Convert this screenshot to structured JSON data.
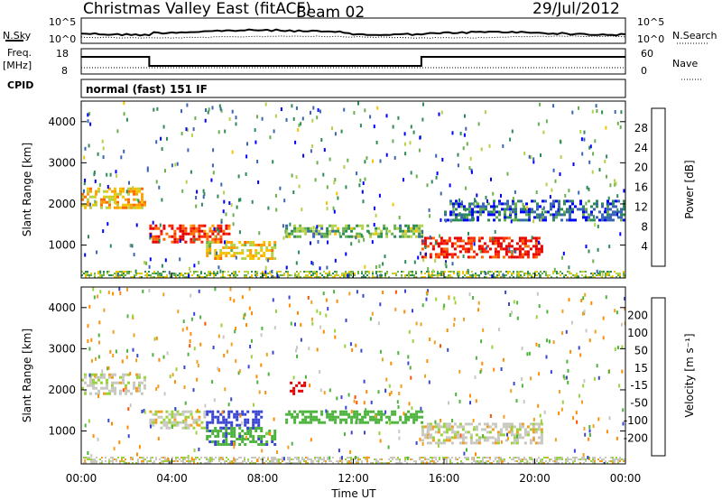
{
  "header": {
    "title": "Christmas Valley East (fitACF)",
    "beam": "Beam 02",
    "date": "29/Jul/2012"
  },
  "left_labels": {
    "nsky": "N.Sky",
    "freq": "Freq.",
    "freq_unit": "[MHz]",
    "cpid": "CPID"
  },
  "right_labels": {
    "nsearch": "N.Search",
    "nave": "Nave"
  },
  "mode_text": "normal (fast) 151 IF",
  "noise_axis": {
    "top_label": "10^5",
    "bottom_label": "10^0"
  },
  "freq_axis": {
    "ticks": [
      "18",
      "8"
    ]
  },
  "nave_axis": {
    "ticks": [
      "60",
      "0"
    ]
  },
  "colors": {
    "power_scale": [
      "#0000ff",
      "#3a64b4",
      "#2e8b57",
      "#6ab04c",
      "#b4d24a",
      "#f5c400",
      "#ffa000",
      "#ff6a00",
      "#ff2a00",
      "#e60000"
    ],
    "velocity_scale": [
      "#1e1ee6",
      "#3a46d2",
      "#2e8b57",
      "#4cb43c",
      "#9ad23c",
      "#c8c8c0",
      "#f0a020",
      "#ff8c00",
      "#ff5000",
      "#e60000"
    ]
  },
  "chart_data": [
    {
      "type": "heatmap",
      "quantity": "Power",
      "ylabel": "Slant Range [km]",
      "yticks": [
        "1000",
        "2000",
        "3000",
        "4000"
      ],
      "ylim": [
        200,
        4500
      ],
      "colorbar_label": "Power [dB]",
      "colorbar_ticks": [
        "4",
        "8",
        "12",
        "16",
        "20",
        "24",
        "28"
      ],
      "features": [
        {
          "t0": 0.0,
          "t1": 2.8,
          "r0": 1900,
          "r1": 2400,
          "level": 0.6
        },
        {
          "t0": 3.0,
          "t1": 6.5,
          "r0": 1100,
          "r1": 1500,
          "level": 0.85
        },
        {
          "t0": 5.5,
          "t1": 8.5,
          "r0": 700,
          "r1": 1100,
          "level": 0.55
        },
        {
          "t0": 9.0,
          "t1": 15.0,
          "r0": 1200,
          "r1": 1500,
          "level": 0.35
        },
        {
          "t0": 15.0,
          "t1": 20.3,
          "r0": 700,
          "r1": 1200,
          "level": 0.9
        },
        {
          "t0": 16.0,
          "t1": 24.0,
          "r0": 1600,
          "r1": 2100,
          "level": 0.15
        }
      ]
    },
    {
      "type": "heatmap",
      "quantity": "Velocity",
      "xlabel": "Time UT",
      "xticks": [
        "00:00",
        "04:00",
        "08:00",
        "12:00",
        "16:00",
        "20:00",
        "00:00"
      ],
      "ylabel": "Slant Range [km]",
      "yticks": [
        "1000",
        "2000",
        "3000",
        "4000"
      ],
      "ylim": [
        200,
        4500
      ],
      "colorbar_label": "Velocity [m s⁻¹]",
      "colorbar_ticks": [
        "200",
        "100",
        "50",
        "15",
        "-15",
        "-50",
        "-100",
        "-200"
      ],
      "features": [
        {
          "t0": 0.0,
          "t1": 2.8,
          "r0": 1900,
          "r1": 2400,
          "vel": 0
        },
        {
          "t0": 3.0,
          "t1": 5.5,
          "r0": 1100,
          "r1": 1500,
          "vel": 0
        },
        {
          "t0": 5.5,
          "t1": 8.0,
          "r0": 1100,
          "r1": 1500,
          "vel": 120
        },
        {
          "t0": 5.5,
          "t1": 8.5,
          "r0": 700,
          "r1": 1100,
          "vel": 60
        },
        {
          "t0": 9.0,
          "t1": 15.0,
          "r0": 1200,
          "r1": 1500,
          "vel": 50
        },
        {
          "t0": 15.0,
          "t1": 20.3,
          "r0": 700,
          "r1": 1200,
          "vel": 0
        },
        {
          "t0": 9.2,
          "t1": 9.8,
          "r0": 1900,
          "r1": 2200,
          "vel": -200
        }
      ]
    }
  ]
}
